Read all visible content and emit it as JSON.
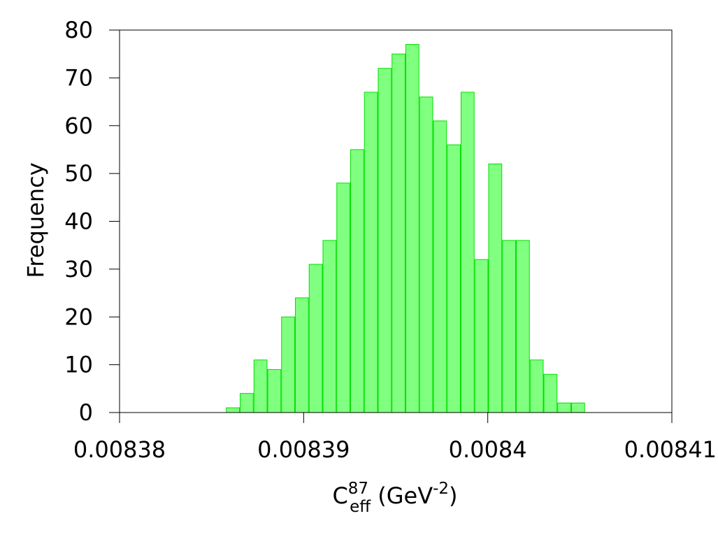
{
  "chart_data": {
    "type": "bar",
    "xlabel_parts": {
      "base": "C",
      "sup": "87",
      "sub": "eff",
      "unit_open": " (GeV",
      "unit_sup": "-2",
      "unit_close": ")"
    },
    "ylabel": "Frequency",
    "xlim": [
      0.00838,
      0.00841
    ],
    "ylim": [
      0,
      80
    ],
    "x_ticks": [
      0.00838,
      0.00839,
      0.0084,
      0.00841
    ],
    "x_tick_labels": [
      "0.00838",
      "0.00839",
      "0.0084",
      "0.00841"
    ],
    "y_ticks": [
      0,
      10,
      20,
      30,
      40,
      50,
      60,
      70,
      80
    ],
    "y_tick_labels": [
      "0",
      "10",
      "20",
      "30",
      "40",
      "50",
      "60",
      "70",
      "80"
    ],
    "bin_width": 7.5e-07,
    "bin_starts": [
      0.0083858,
      0.00838655,
      0.0083873,
      0.00838805,
      0.0083888,
      0.00838955,
      0.0083903,
      0.00839105,
      0.0083918,
      0.00839255,
      0.0083933,
      0.00839405,
      0.0083948,
      0.00839555,
      0.0083963,
      0.00839705,
      0.0083978,
      0.00839855,
      0.0083993,
      0.00840005,
      0.0084008,
      0.00840155,
      0.0084023,
      0.00840305,
      0.0084038,
      0.00840455
    ],
    "values": [
      1,
      4,
      11,
      9,
      20,
      24,
      31,
      36,
      48,
      55,
      67,
      72,
      75,
      77,
      66,
      61,
      56,
      67,
      32,
      52,
      36,
      36,
      11,
      8,
      2,
      2
    ],
    "bar_color": "#80ff80",
    "bar_edge_color": "#00e000",
    "grid": false
  }
}
